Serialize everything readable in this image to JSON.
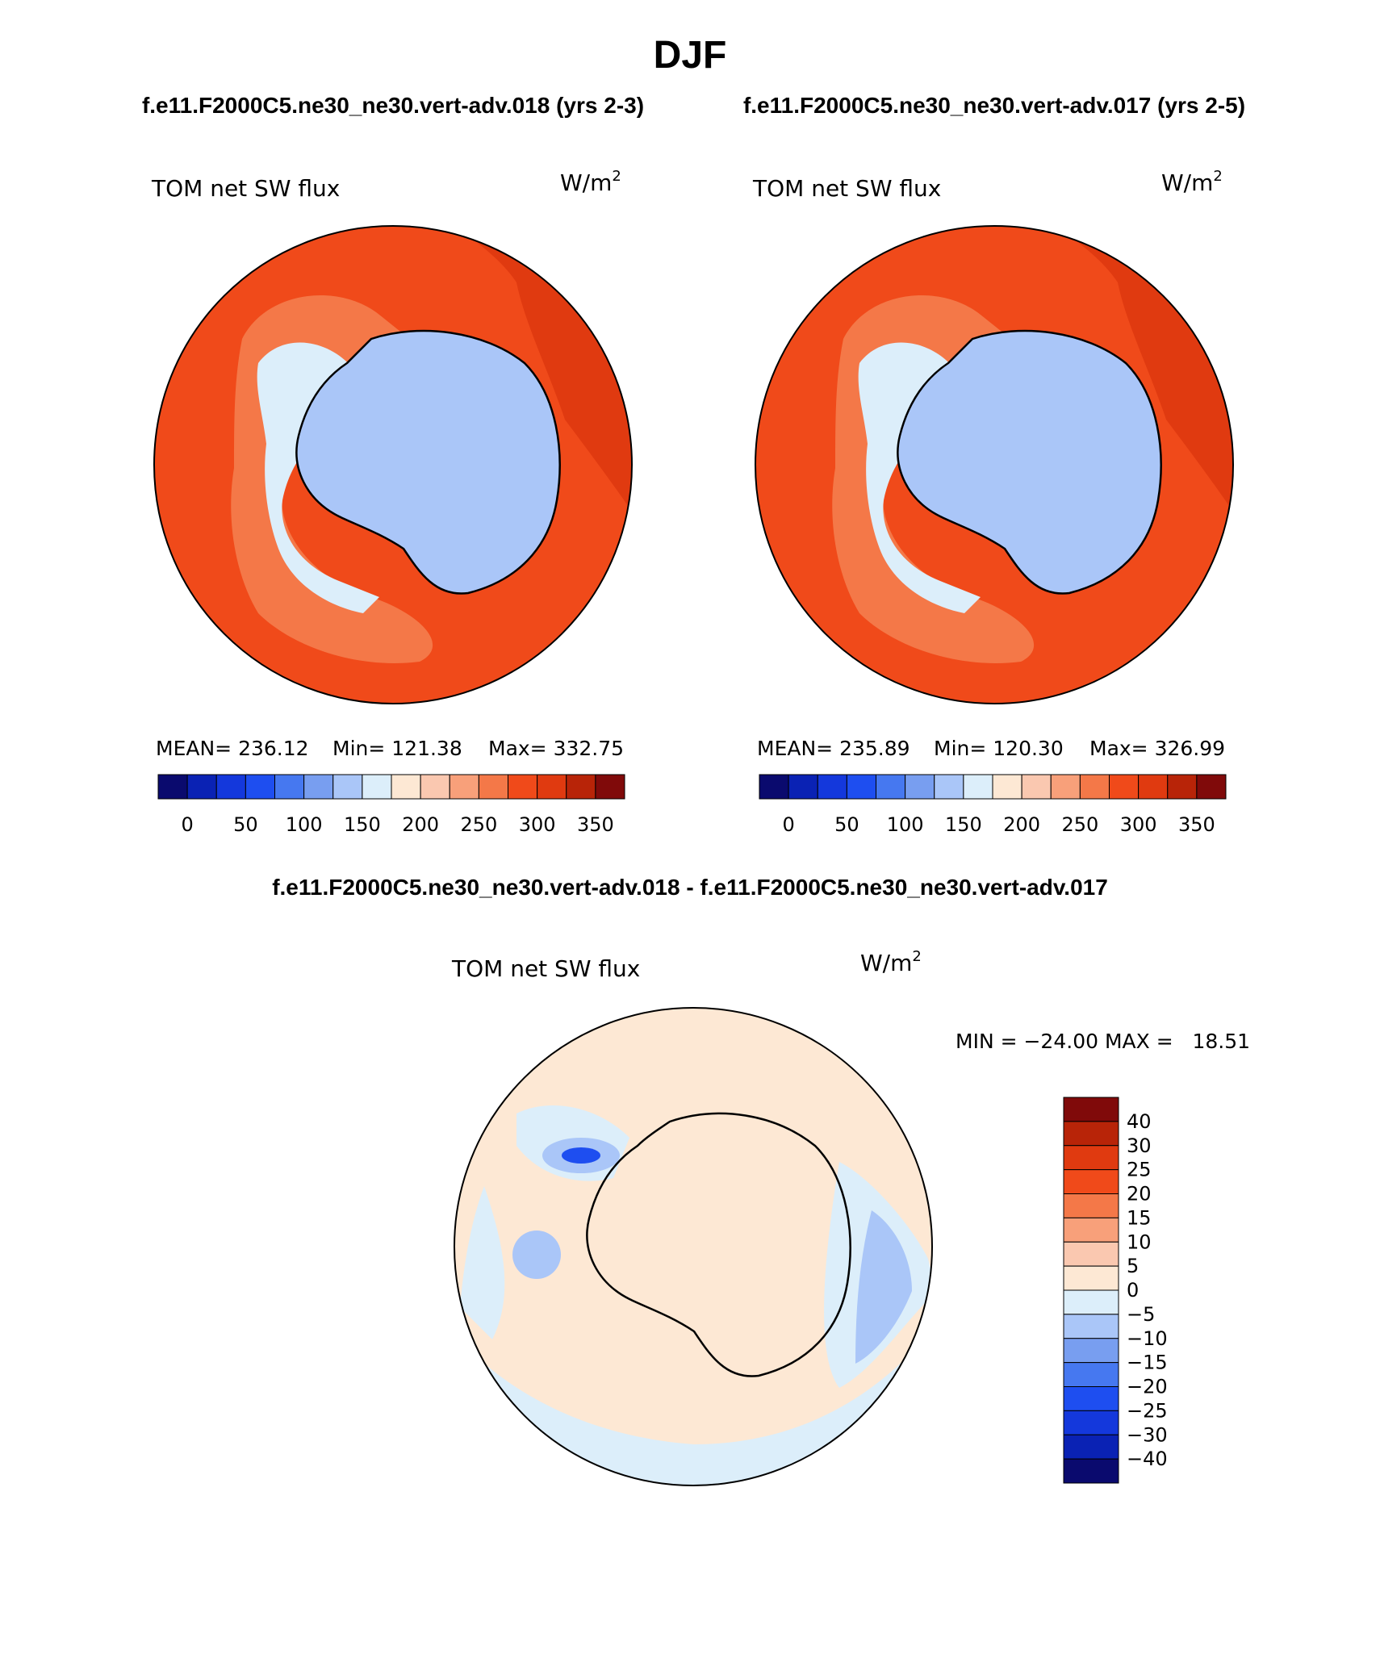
{
  "main_title": "DJF",
  "header": {
    "left_title": "f.e11.F2000C5.ne30_ne30.vert-adv.018 (yrs 2-3)",
    "right_title": "f.e11.F2000C5.ne30_ne30.vert-adv.017 (yrs 2-5)"
  },
  "panels": [
    {
      "variable": "TOM net SW flux",
      "units": "W/m",
      "units_exp": "2",
      "stats": {
        "mean": "MEAN= 236.12",
        "min": "Min= 121.38",
        "max": "Max= 332.75"
      }
    },
    {
      "variable": "TOM net SW flux",
      "units": "W/m",
      "units_exp": "2",
      "stats": {
        "mean": "MEAN= 235.89",
        "min": "Min= 120.30",
        "max": "Max= 326.99"
      }
    }
  ],
  "main_colorbar": {
    "colors": [
      "#0a0a6e",
      "#0a22b4",
      "#1438dc",
      "#1e4ef0",
      "#4678f0",
      "#789ef0",
      "#aac6f8",
      "#dceefa",
      "#fde8d4",
      "#fac8b0",
      "#f8a07a",
      "#f47848",
      "#f04a1a",
      "#e03a10",
      "#b82408",
      "#800a0a"
    ],
    "labels": [
      "0",
      "50",
      "100",
      "150",
      "200",
      "250",
      "300",
      "350"
    ]
  },
  "diff_title": "f.e11.F2000C5.ne30_ne30.vert-adv.018 - f.e11.F2000C5.ne30_ne30.vert-adv.017",
  "diff_panel": {
    "variable": "TOM net SW flux",
    "units": "W/m",
    "units_exp": "2",
    "minmax": "MIN = −24.00 MAX =   18.51"
  },
  "diff_colorbar": {
    "colors": [
      "#800a0a",
      "#b82408",
      "#e03a10",
      "#f04a1a",
      "#f47848",
      "#f8a07a",
      "#fac8b0",
      "#fde8d4",
      "#dceefa",
      "#aac6f8",
      "#789ef0",
      "#4678f0",
      "#1e4ef0",
      "#1438dc",
      "#0a22b4",
      "#0a0a6e"
    ],
    "labels": [
      "40",
      "30",
      "25",
      "20",
      "15",
      "10",
      "5",
      "0",
      "−5",
      "−10",
      "−15",
      "−20",
      "−25",
      "−30",
      "−40"
    ]
  },
  "colors": {
    "ocean_main": "#f04a1a",
    "ocean_dark": "#e03a10",
    "ocean_light": "#f47848",
    "ice": "#aac6f8",
    "ice_light": "#dceefa",
    "diff_bg": "#fde8d4",
    "diff_blue": "#dceefa",
    "diff_blue2": "#aac6f8"
  }
}
